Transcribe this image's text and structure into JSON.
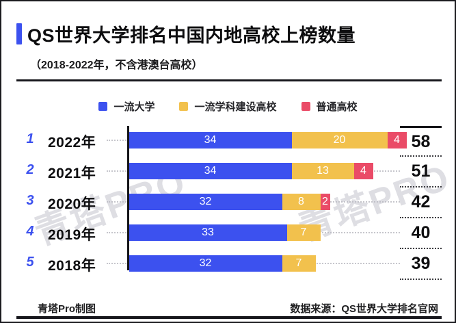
{
  "header": {
    "title": "QS世界大学排名中国内地高校上榜数量",
    "subtitle": "（2018-2022年，不含港澳台高校）"
  },
  "colors": {
    "accent_blue": "#3C51EF",
    "bar_yellow": "#F2C14D",
    "bar_red": "#EA4B67",
    "rank_blue": "#3C51EF"
  },
  "chart_data": {
    "type": "bar",
    "orientation": "horizontal",
    "title": "QS世界大学排名中国内地高校上榜数量",
    "subtitle": "（2018-2022年，不含港澳台高校）",
    "categories": [
      "2022年",
      "2021年",
      "2020年",
      "2019年",
      "2018年"
    ],
    "rank_labels": [
      "1",
      "2",
      "3",
      "4",
      "5"
    ],
    "series": [
      {
        "name": "一流大学",
        "color": "#3C51EF",
        "values": [
          34,
          34,
          32,
          33,
          32
        ]
      },
      {
        "name": "一流学科建设高校",
        "color": "#F2C14D",
        "values": [
          20,
          13,
          8,
          7,
          7
        ]
      },
      {
        "name": "普通高校",
        "color": "#EA4B67",
        "values": [
          4,
          4,
          2,
          0,
          0
        ]
      }
    ],
    "totals": [
      58,
      51,
      42,
      40,
      39
    ],
    "xlim": [
      0,
      58
    ],
    "grid": false,
    "legend_position": "top",
    "value_labels": "inside-white"
  },
  "watermark": {
    "text": "青塔PRO"
  },
  "footer": {
    "credit": "青塔Pro制图",
    "source": "数据来源：QS世界大学排名官网"
  }
}
